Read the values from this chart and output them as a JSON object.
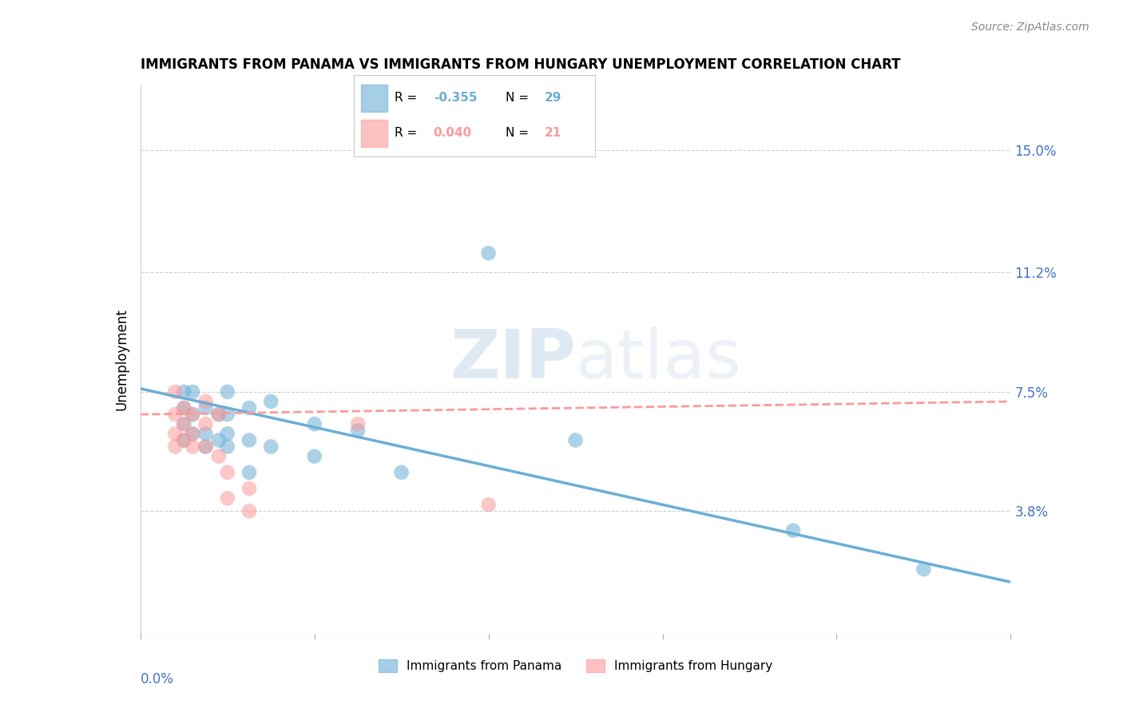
{
  "title": "IMMIGRANTS FROM PANAMA VS IMMIGRANTS FROM HUNGARY UNEMPLOYMENT CORRELATION CHART",
  "source": "Source: ZipAtlas.com",
  "ylabel": "Unemployment",
  "xlabel": "",
  "xlim": [
    0.0,
    0.2
  ],
  "ylim": [
    0.0,
    0.17
  ],
  "yticks": [
    0.038,
    0.075,
    0.112,
    0.15
  ],
  "ytick_labels": [
    "3.8%",
    "7.5%",
    "11.2%",
    "15.0%"
  ],
  "legend_inside": {
    "panama": {
      "R": "-0.355",
      "N": "29"
    },
    "hungary": {
      "R": "0.040",
      "N": "21"
    }
  },
  "legend_bottom": [
    "Immigrants from Panama",
    "Immigrants from Hungary"
  ],
  "panama_color": "#6baed6",
  "hungary_color": "#fb9a99",
  "panama_scatter": [
    [
      0.01,
      0.075
    ],
    [
      0.01,
      0.07
    ],
    [
      0.01,
      0.065
    ],
    [
      0.01,
      0.06
    ],
    [
      0.012,
      0.075
    ],
    [
      0.012,
      0.068
    ],
    [
      0.012,
      0.062
    ],
    [
      0.015,
      0.07
    ],
    [
      0.015,
      0.062
    ],
    [
      0.015,
      0.058
    ],
    [
      0.018,
      0.068
    ],
    [
      0.018,
      0.06
    ],
    [
      0.02,
      0.075
    ],
    [
      0.02,
      0.068
    ],
    [
      0.02,
      0.062
    ],
    [
      0.02,
      0.058
    ],
    [
      0.025,
      0.07
    ],
    [
      0.025,
      0.06
    ],
    [
      0.025,
      0.05
    ],
    [
      0.03,
      0.072
    ],
    [
      0.03,
      0.058
    ],
    [
      0.04,
      0.065
    ],
    [
      0.04,
      0.055
    ],
    [
      0.05,
      0.063
    ],
    [
      0.06,
      0.05
    ],
    [
      0.08,
      0.118
    ],
    [
      0.1,
      0.06
    ],
    [
      0.15,
      0.032
    ],
    [
      0.18,
      0.02
    ]
  ],
  "hungary_scatter": [
    [
      0.008,
      0.075
    ],
    [
      0.008,
      0.068
    ],
    [
      0.008,
      0.062
    ],
    [
      0.008,
      0.058
    ],
    [
      0.01,
      0.07
    ],
    [
      0.01,
      0.065
    ],
    [
      0.01,
      0.06
    ],
    [
      0.012,
      0.068
    ],
    [
      0.012,
      0.062
    ],
    [
      0.012,
      0.058
    ],
    [
      0.015,
      0.072
    ],
    [
      0.015,
      0.065
    ],
    [
      0.015,
      0.058
    ],
    [
      0.018,
      0.068
    ],
    [
      0.018,
      0.055
    ],
    [
      0.02,
      0.05
    ],
    [
      0.02,
      0.042
    ],
    [
      0.025,
      0.045
    ],
    [
      0.025,
      0.038
    ],
    [
      0.05,
      0.065
    ],
    [
      0.08,
      0.04
    ]
  ],
  "panama_line": {
    "x0": 0.0,
    "y0": 0.076,
    "x1": 0.2,
    "y1": 0.016
  },
  "hungary_line": {
    "x0": 0.0,
    "y0": 0.068,
    "x1": 0.2,
    "y1": 0.072
  },
  "watermark_zip": "ZIP",
  "watermark_atlas": "atlas",
  "background_color": "#ffffff",
  "title_fontsize": 12,
  "axis_label_color": "#4472c4",
  "grid_color": "#d0d0d0"
}
